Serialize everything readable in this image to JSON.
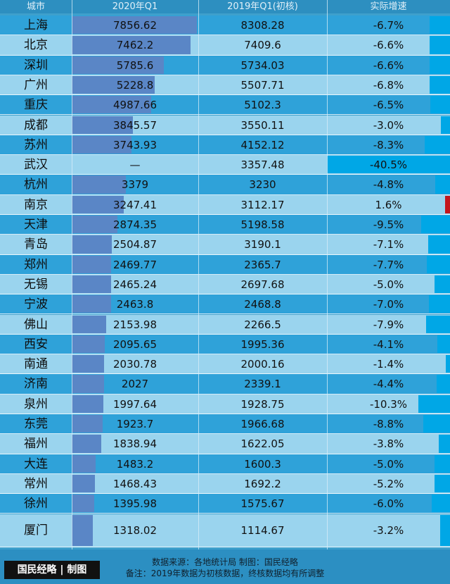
{
  "header": {
    "col_city": "城市",
    "col_2020": "2020年Q1",
    "col_2019": "2019年Q1(初核)",
    "col_growth": "实际增速"
  },
  "colors": {
    "row_dark": "#2fa2d9",
    "row_light": "#9ad4ee",
    "bar_2020": "#5a86c6",
    "growth_negative": "#00a7e6",
    "growth_positive": "#c3161c"
  },
  "chart_data": {
    "type": "table",
    "columns": [
      "城市",
      "2020年Q1",
      "2019年Q1(初核)",
      "实际增速"
    ],
    "rows": [
      {
        "city": "上海",
        "v2020": "7856.62",
        "v2019": "8308.28",
        "growth": "-6.7%",
        "v2020_num": 7856.62,
        "growth_num": -6.7
      },
      {
        "city": "北京",
        "v2020": "7462.2",
        "v2019": "7409.6",
        "growth": "-6.6%",
        "v2020_num": 7462.2,
        "growth_num": -6.6
      },
      {
        "city": "深圳",
        "v2020": "5785.6",
        "v2019": "5734.03",
        "growth": "-6.6%",
        "v2020_num": 5785.6,
        "growth_num": -6.6
      },
      {
        "city": "广州",
        "v2020": "5228.8",
        "v2019": "5507.71",
        "growth": "-6.8%",
        "v2020_num": 5228.8,
        "growth_num": -6.8
      },
      {
        "city": "重庆",
        "v2020": "4987.66",
        "v2019": "5102.3",
        "growth": "-6.5%",
        "v2020_num": 4987.66,
        "growth_num": -6.5
      },
      {
        "city": "成都",
        "v2020": "3845.57",
        "v2019": "3550.11",
        "growth": "-3.0%",
        "v2020_num": 3845.57,
        "growth_num": -3.0
      },
      {
        "city": "苏州",
        "v2020": "3743.93",
        "v2019": "4152.12",
        "growth": "-8.3%",
        "v2020_num": 3743.93,
        "growth_num": -8.3
      },
      {
        "city": "武汉",
        "v2020": "—",
        "v2019": "3357.48",
        "growth": "-40.5%",
        "v2020_num": null,
        "growth_num": -40.5
      },
      {
        "city": "杭州",
        "v2020": "3379",
        "v2019": "3230",
        "growth": "-4.8%",
        "v2020_num": 3379,
        "growth_num": -4.8
      },
      {
        "city": "南京",
        "v2020": "3247.41",
        "v2019": "3112.17",
        "growth": "1.6%",
        "v2020_num": 3247.41,
        "growth_num": 1.6
      },
      {
        "city": "天津",
        "v2020": "2874.35",
        "v2019": "5198.58",
        "growth": "-9.5%",
        "v2020_num": 2874.35,
        "growth_num": -9.5
      },
      {
        "city": "青岛",
        "v2020": "2504.87",
        "v2019": "3190.1",
        "growth": "-7.1%",
        "v2020_num": 2504.87,
        "growth_num": -7.1
      },
      {
        "city": "郑州",
        "v2020": "2469.77",
        "v2019": "2365.7",
        "growth": "-7.7%",
        "v2020_num": 2469.77,
        "growth_num": -7.7
      },
      {
        "city": "无锡",
        "v2020": "2465.24",
        "v2019": "2697.68",
        "growth": "-5.0%",
        "v2020_num": 2465.24,
        "growth_num": -5.0
      },
      {
        "city": "宁波",
        "v2020": "2463.8",
        "v2019": "2468.8",
        "growth": "-7.0%",
        "v2020_num": 2463.8,
        "growth_num": -7.0
      },
      {
        "city": "佛山",
        "v2020": "2153.98",
        "v2019": "2266.5",
        "growth": "-7.9%",
        "v2020_num": 2153.98,
        "growth_num": -7.9
      },
      {
        "city": "西安",
        "v2020": "2095.65",
        "v2019": "1995.36",
        "growth": "-4.1%",
        "v2020_num": 2095.65,
        "growth_num": -4.1
      },
      {
        "city": "南通",
        "v2020": "2030.78",
        "v2019": "2000.16",
        "growth": "-1.4%",
        "v2020_num": 2030.78,
        "growth_num": -1.4
      },
      {
        "city": "济南",
        "v2020": "2027",
        "v2019": "2339.1",
        "growth": "-4.4%",
        "v2020_num": 2027,
        "growth_num": -4.4
      },
      {
        "city": "泉州",
        "v2020": "1997.64",
        "v2019": "1928.75",
        "growth": "-10.3%",
        "v2020_num": 1997.64,
        "growth_num": -10.3
      },
      {
        "city": "东莞",
        "v2020": "1923.7",
        "v2019": "1966.68",
        "growth": "-8.8%",
        "v2020_num": 1923.7,
        "growth_num": -8.8
      },
      {
        "city": "福州",
        "v2020": "1838.94",
        "v2019": "1622.05",
        "growth": "-3.8%",
        "v2020_num": 1838.94,
        "growth_num": -3.8
      },
      {
        "city": "大连",
        "v2020": "1483.2",
        "v2019": "1600.3",
        "growth": "-5.0%",
        "v2020_num": 1483.2,
        "growth_num": -5.0
      },
      {
        "city": "常州",
        "v2020": "1468.43",
        "v2019": "1692.2",
        "growth": "-5.2%",
        "v2020_num": 1468.43,
        "growth_num": -5.2
      },
      {
        "city": "徐州",
        "v2020": "1395.98",
        "v2019": "1575.67",
        "growth": "-6.0%",
        "v2020_num": 1395.98,
        "growth_num": -6.0
      },
      {
        "city": "厦门",
        "v2020": "1318.02",
        "v2019": "1114.67",
        "growth": "-3.2%",
        "v2020_num": 1318.02,
        "growth_num": -3.2
      }
    ]
  },
  "footer": {
    "source": "数据来源：各地统计局 制图：国民经略",
    "note": "备注：2019年数据为初核数据，终核数据均有所调整",
    "brand": "国民经略 | 制图"
  }
}
